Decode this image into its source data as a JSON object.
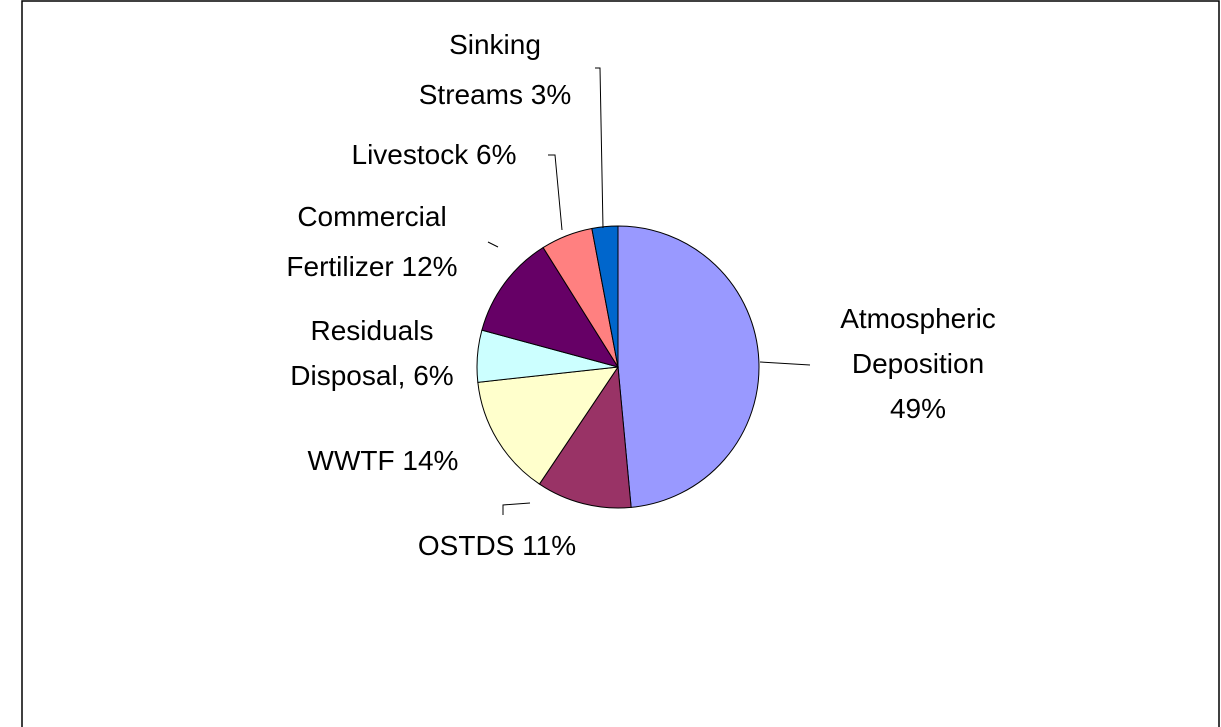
{
  "chart_data": {
    "type": "pie",
    "labels": [
      [
        "Atmospheric",
        "Deposition",
        "49%"
      ],
      [
        "OSTDS 11%"
      ],
      [
        "WWTF 14%"
      ],
      [
        "Residuals",
        "Disposal, 6%"
      ],
      [
        "Commercial",
        "Fertilizer 12%"
      ],
      [
        "Livestock 6%"
      ],
      [
        "Sinking",
        "Streams 3%"
      ]
    ],
    "values": [
      49,
      11,
      14,
      6,
      12,
      6,
      3
    ],
    "colors": [
      "#9999ff",
      "#993366",
      "#ffffcc",
      "#ccffff",
      "#660066",
      "#ff8080",
      "#0066cc"
    ]
  }
}
